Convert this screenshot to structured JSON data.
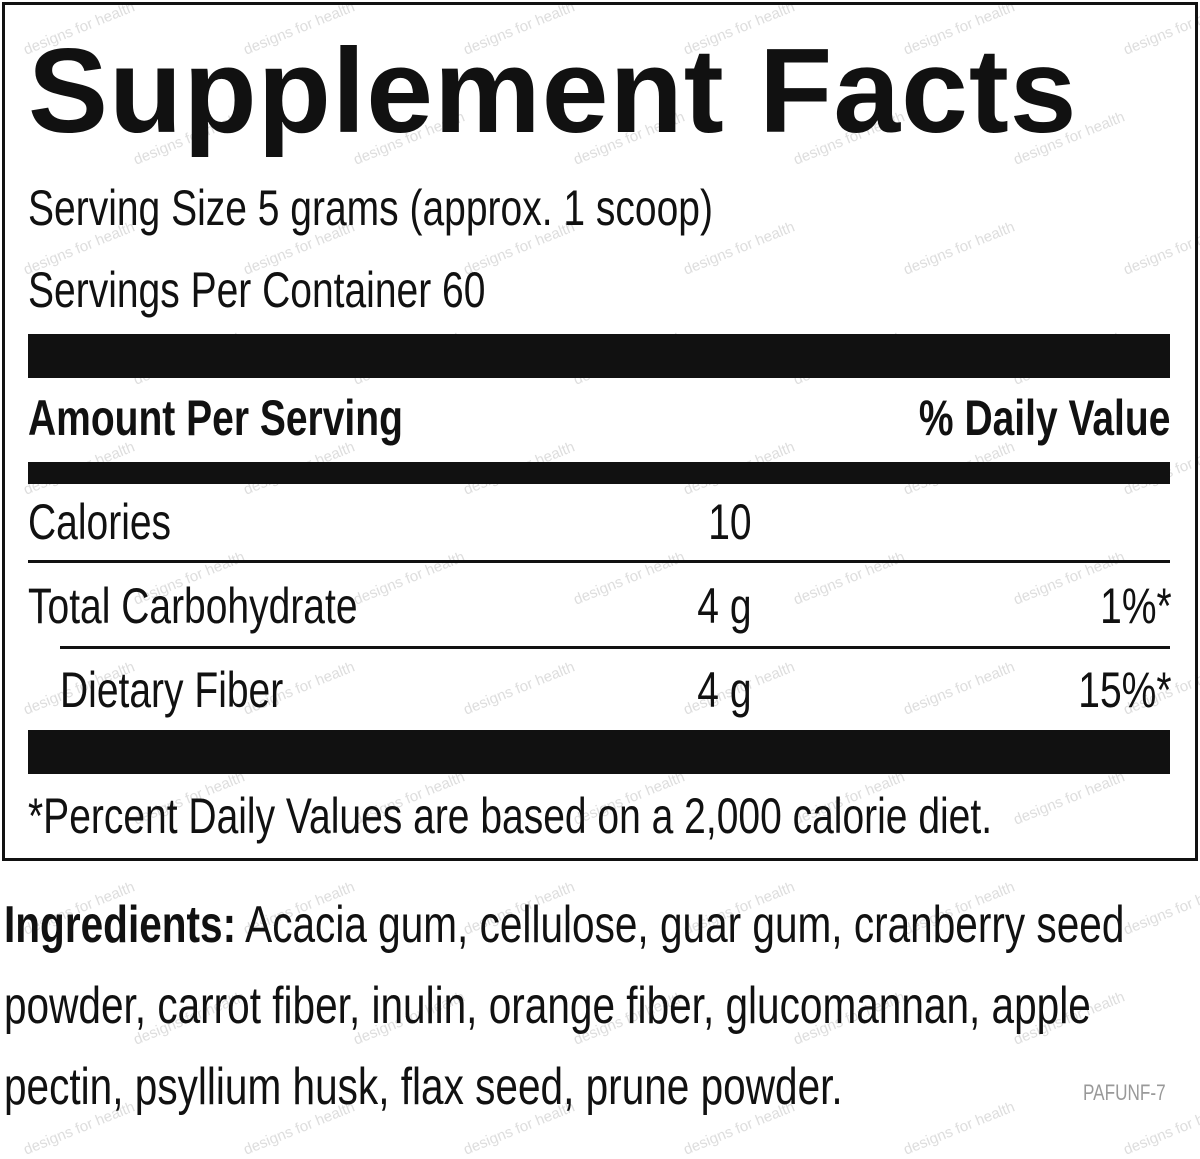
{
  "title": "Supplement Facts",
  "serving_size": "Serving Size 5 grams (approx. 1 scoop)",
  "servings_per_container": "Servings Per Container 60",
  "header": {
    "amount": "Amount Per Serving",
    "daily_value": "% Daily Value"
  },
  "rows": [
    {
      "name": "Calories",
      "amount": "10",
      "dv": null
    },
    {
      "name": "Total Carbohydrate",
      "amount": "4 g",
      "dv": "1%*"
    },
    {
      "name": "Dietary Fiber",
      "amount": "4 g",
      "dv": "15%*"
    }
  ],
  "footnote": "*Percent Daily Values are based on a 2,000 calorie diet.",
  "ingredients": {
    "label": "Ingredients:",
    "text": "Acacia gum, cellulose, guar gum, cranberry seed powder, carrot fiber, inulin, orange fiber, glucomannan, apple pectin, psyllium husk, flax seed, prune powder."
  },
  "code": "PAFUNF-7",
  "watermark": "designs for health"
}
